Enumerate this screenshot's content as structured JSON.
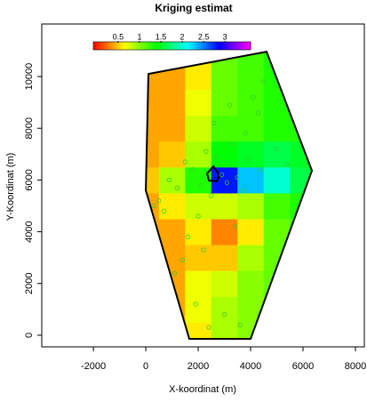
{
  "chart_data": {
    "type": "heatmap",
    "title": "Kriging estimat",
    "xlabel": "X-koordinat (m)",
    "ylabel": "Y-Koordinat (m)",
    "xlim": [
      -3970,
      8340
    ],
    "ylim": [
      -450,
      12030
    ],
    "xticks": [
      -2000,
      0,
      2000,
      4000,
      6000,
      8000
    ],
    "yticks": [
      0,
      2000,
      4000,
      6000,
      8000,
      10000
    ],
    "colormap": "rainbow",
    "clim": [
      -0.08,
      3.6
    ],
    "cbar_ticks": [
      0.5,
      1,
      1.5,
      2,
      2.5,
      3
    ],
    "grid_x": [
      0,
      1000,
      2000,
      3000,
      4000,
      5000,
      6000
    ],
    "grid_y": [
      0,
      1000,
      2000,
      3000,
      4000,
      5000,
      6000,
      7000,
      8000,
      9000,
      10000,
      11000
    ],
    "z": [
      [
        0.4,
        0.4,
        0.6,
        0.9,
        1.0,
        1.0,
        1.0
      ],
      [
        0.4,
        0.4,
        0.7,
        0.9,
        1.0,
        1.0,
        1.0
      ],
      [
        0.4,
        0.4,
        0.7,
        0.8,
        1.0,
        1.1,
        1.1
      ],
      [
        0.4,
        0.4,
        0.5,
        0.5,
        0.9,
        1.1,
        1.1
      ],
      [
        0.4,
        0.4,
        0.6,
        0.3,
        0.6,
        1.1,
        1.2
      ],
      [
        0.4,
        0.6,
        0.8,
        0.8,
        0.9,
        1.2,
        1.3
      ],
      [
        0.5,
        0.9,
        1.3,
        2.8,
        2.3,
        2.0,
        1.6
      ],
      [
        0.4,
        0.5,
        0.9,
        1.4,
        1.5,
        1.6,
        1.5
      ],
      [
        0.4,
        0.4,
        0.8,
        1.2,
        1.2,
        1.3,
        1.3
      ],
      [
        0.4,
        0.4,
        0.7,
        1.1,
        1.2,
        1.3,
        1.3
      ],
      [
        0.4,
        0.4,
        0.6,
        1.1,
        1.2,
        1.3,
        1.3
      ],
      [
        0.4,
        0.4,
        0.6,
        1.1,
        1.2,
        1.3,
        1.3
      ]
    ],
    "boundary": {
      "x": [
        0,
        100,
        4610,
        6340,
        4000,
        1660
      ],
      "y": [
        5600,
        10100,
        10960,
        6360,
        -140,
        -140
      ]
    },
    "inner": {
      "x": [
        2340,
        2580,
        2810,
        2710,
        2410
      ],
      "y": [
        6250,
        6530,
        6190,
        5950,
        5980
      ]
    },
    "points": {
      "color": "#33cc33",
      "x": [
        500,
        900,
        1200,
        1500,
        1800,
        2100,
        2300,
        2500,
        2700,
        2900,
        3100,
        3300,
        3500,
        3700,
        3900,
        4100,
        4300,
        4500,
        2000,
        1600,
        1100,
        700,
        300,
        2600,
        3200,
        3800,
        4400,
        5000,
        5400,
        1900,
        2400,
        3000,
        3600,
        1400,
        2200,
        3400
      ],
      "y": [
        5200,
        6000,
        5700,
        6700,
        6400,
        5800,
        7100,
        5400,
        6900,
        6200,
        5900,
        7400,
        6100,
        5600,
        6800,
        9200,
        8600,
        9800,
        4600,
        3800,
        2400,
        4800,
        5000,
        8200,
        8900,
        7800,
        6400,
        7200,
        6600,
        1200,
        300,
        800,
        400,
        2900,
        3300,
        4200
      ]
    }
  }
}
